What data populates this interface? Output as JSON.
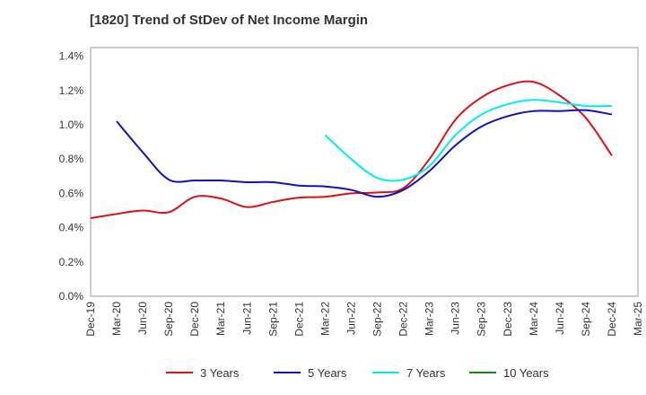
{
  "chart_data": {
    "type": "line",
    "title": "[1820]  Trend of StDev of Net Income Margin",
    "xlabel": "",
    "ylabel": "",
    "x": [
      "Dec-19",
      "Mar-20",
      "Jun-20",
      "Sep-20",
      "Dec-20",
      "Mar-21",
      "Jun-21",
      "Sep-21",
      "Dec-21",
      "Mar-22",
      "Jun-22",
      "Sep-22",
      "Dec-22",
      "Mar-23",
      "Jun-23",
      "Sep-23",
      "Dec-23",
      "Mar-24",
      "Jun-24",
      "Sep-24",
      "Dec-24",
      "Mar-25"
    ],
    "y_ticks": [
      "0.0%",
      "0.2%",
      "0.4%",
      "0.6%",
      "0.8%",
      "1.0%",
      "1.2%",
      "1.4%"
    ],
    "ylim": [
      0,
      1.45
    ],
    "grid": true,
    "legend_position": "bottom",
    "series": [
      {
        "name": "3 Years",
        "color": "#dd1111",
        "values": [
          0.455,
          0.48,
          0.5,
          0.49,
          0.58,
          0.57,
          0.52,
          0.55,
          0.575,
          0.58,
          0.6,
          0.605,
          0.63,
          0.8,
          1.03,
          1.16,
          1.23,
          1.25,
          1.17,
          1.04,
          0.82,
          null
        ]
      },
      {
        "name": "5 Years",
        "color": "#1111bb",
        "values": [
          null,
          1.02,
          0.84,
          0.68,
          0.675,
          0.675,
          0.665,
          0.665,
          0.645,
          0.64,
          0.62,
          0.58,
          0.62,
          0.73,
          0.88,
          0.99,
          1.05,
          1.08,
          1.08,
          1.085,
          1.06,
          null
        ]
      },
      {
        "name": "7 Years",
        "color": "#00eeee",
        "values": [
          null,
          null,
          null,
          null,
          null,
          null,
          null,
          null,
          null,
          0.94,
          0.8,
          0.69,
          0.68,
          0.76,
          0.94,
          1.06,
          1.12,
          1.145,
          1.13,
          1.11,
          1.11,
          null
        ]
      },
      {
        "name": "10 Years",
        "color": "#118811",
        "values": [
          null,
          null,
          null,
          null,
          null,
          null,
          null,
          null,
          null,
          null,
          null,
          null,
          null,
          null,
          null,
          null,
          null,
          null,
          null,
          null,
          null,
          null
        ]
      }
    ]
  }
}
